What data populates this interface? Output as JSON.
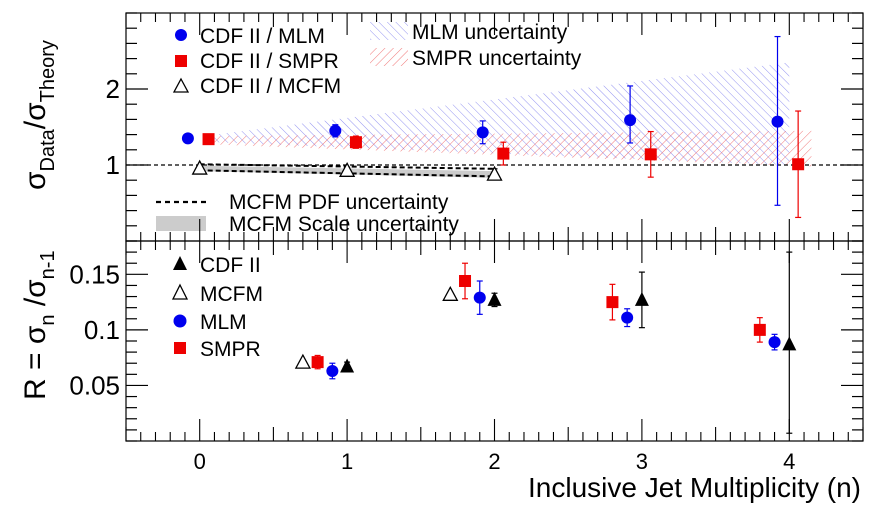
{
  "chart_data": [
    {
      "type": "scatter",
      "panel": "top",
      "ylabel_main": "σ",
      "ylabel_sub_num": "Data",
      "ylabel_sep": "/σ",
      "ylabel_sub_den": "Theory",
      "xlim": [
        -0.5,
        4.5
      ],
      "ylim": [
        0.0,
        3.0
      ],
      "y_ticks": [
        "1",
        "2"
      ],
      "y_tick_values": [
        1,
        2
      ],
      "reference_line": 1,
      "legend": {
        "mlm": "CDF II / MLM",
        "smpr": "CDF II / SMPR",
        "mcfm": "CDF II / MCFM",
        "mlm_unc": "MLM uncertainty",
        "smpr_unc": "SMPR uncertainty",
        "pdf_unc": "MCFM PDF uncertainty",
        "scale_unc": "MCFM Scale uncertainty"
      },
      "series": [
        {
          "key": "mlm",
          "name": "CDF II / MLM",
          "color": "#0000ee",
          "marker": "circle",
          "x": [
            -0.08,
            0.92,
            1.92,
            2.92,
            3.92
          ],
          "y": [
            1.35,
            1.45,
            1.43,
            1.59,
            1.57
          ],
          "err_lo": [
            0.0,
            0.08,
            0.15,
            0.3,
            1.1
          ],
          "err_hi": [
            0.0,
            0.08,
            0.15,
            0.45,
            1.12
          ]
        },
        {
          "key": "smpr",
          "name": "CDF II / SMPR",
          "color": "#ee0000",
          "marker": "square",
          "x": [
            0.06,
            1.06,
            2.06,
            3.06,
            4.06
          ],
          "y": [
            1.34,
            1.3,
            1.15,
            1.14,
            1.01
          ],
          "err_lo": [
            0.0,
            0.08,
            0.15,
            0.3,
            0.7
          ],
          "err_hi": [
            0.0,
            0.08,
            0.15,
            0.3,
            0.7
          ]
        },
        {
          "key": "mcfm",
          "name": "CDF II / MCFM",
          "color": "#000000",
          "marker": "triangle-open",
          "x": [
            0.0,
            1.0,
            2.0
          ],
          "y": [
            0.96,
            0.93,
            0.88
          ],
          "err_lo": [
            0.0,
            0.04,
            0.07
          ],
          "err_hi": [
            0.0,
            0.04,
            0.07
          ]
        }
      ],
      "mlm_band": {
        "x": [
          0.1,
          4.0
        ],
        "lo": [
          1.3,
          1.0
        ],
        "hi": [
          1.4,
          2.35
        ],
        "color": "#7777ee"
      },
      "smpr_band": {
        "x": [
          0.1,
          4.15
        ],
        "lo": [
          1.27,
          0.98
        ],
        "hi": [
          1.38,
          1.45
        ],
        "color": "#ee5555"
      },
      "scale_band": {
        "x": [
          0.0,
          2.0
        ],
        "lo": [
          0.92,
          0.83
        ],
        "hi": [
          0.99,
          0.92
        ],
        "color": "#cccccc"
      },
      "pdf_lines": {
        "x": [
          0.0,
          2.0
        ],
        "lo": [
          0.93,
          0.85
        ],
        "hi": [
          1.01,
          0.95
        ]
      }
    },
    {
      "type": "scatter",
      "panel": "bottom",
      "ylabel_main": "R = σ",
      "ylabel_sub_num": "n",
      "ylabel_sep": " /σ",
      "ylabel_sub_den": "n-1",
      "xlabel": "Inclusive Jet Multiplicity (n)",
      "xlim": [
        -0.5,
        4.5
      ],
      "ylim": [
        0.0,
        0.18
      ],
      "x_ticks": [
        "0",
        "1",
        "2",
        "3",
        "4"
      ],
      "x_tick_values": [
        0,
        1,
        2,
        3,
        4
      ],
      "y_ticks": [
        "0.05",
        "0.1",
        "0.15"
      ],
      "y_tick_values": [
        0.05,
        0.1,
        0.15
      ],
      "legend": {
        "cdf": "CDF II",
        "mcfm": "MCFM",
        "mlm": "MLM",
        "smpr": "SMPR"
      },
      "series": [
        {
          "key": "cdf",
          "name": "CDF II",
          "color": "#000000",
          "marker": "triangle-filled",
          "x": [
            1.0,
            2.0,
            3.0,
            4.0
          ],
          "y": [
            0.067,
            0.127,
            0.127,
            0.087
          ],
          "err_lo": [
            0.004,
            0.006,
            0.025,
            0.08
          ],
          "err_hi": [
            0.004,
            0.006,
            0.025,
            0.083
          ]
        },
        {
          "key": "mcfm",
          "name": "MCFM",
          "color": "#000000",
          "marker": "triangle-open",
          "x": [
            0.7,
            1.7
          ],
          "y": [
            0.071,
            0.132
          ],
          "err_lo": [
            0.0,
            0.0
          ],
          "err_hi": [
            0.0,
            0.0
          ]
        },
        {
          "key": "mlm",
          "name": "MLM",
          "color": "#0000ee",
          "marker": "circle",
          "x": [
            0.9,
            1.9,
            2.9,
            3.9
          ],
          "y": [
            0.063,
            0.129,
            0.111,
            0.089
          ],
          "err_lo": [
            0.007,
            0.015,
            0.008,
            0.007
          ],
          "err_hi": [
            0.007,
            0.015,
            0.008,
            0.007
          ]
        },
        {
          "key": "smpr",
          "name": "SMPR",
          "color": "#ee0000",
          "marker": "square",
          "x": [
            0.8,
            1.8,
            2.8,
            3.8
          ],
          "y": [
            0.071,
            0.144,
            0.125,
            0.1
          ],
          "err_lo": [
            0.006,
            0.016,
            0.016,
            0.011
          ],
          "err_hi": [
            0.006,
            0.016,
            0.016,
            0.011
          ]
        }
      ]
    }
  ]
}
